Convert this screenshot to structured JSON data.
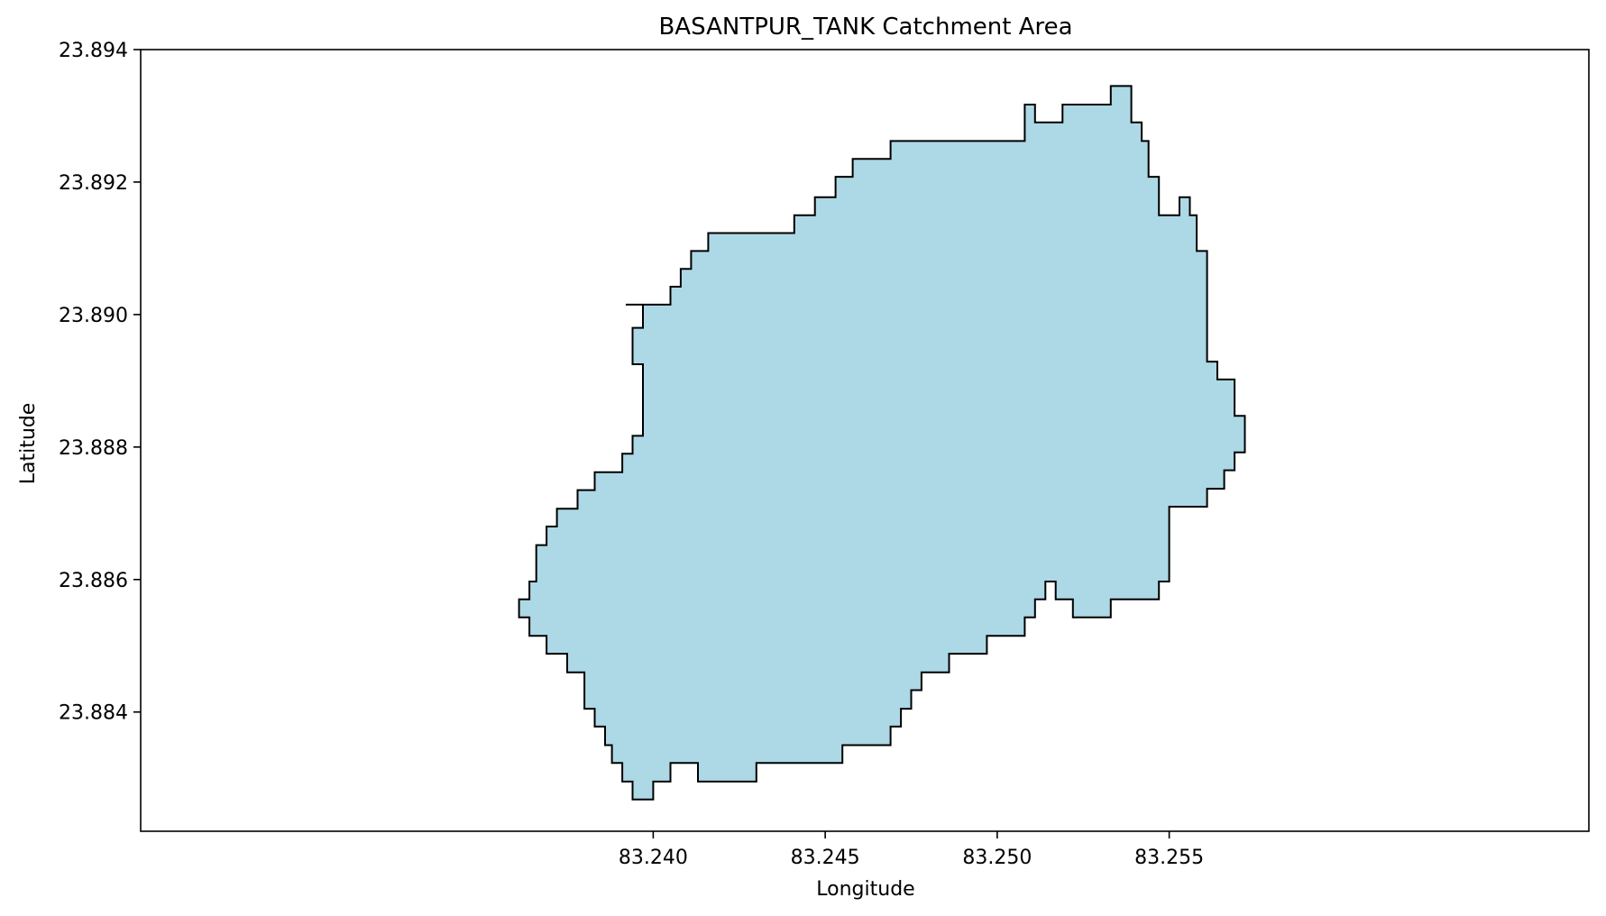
{
  "title": "BASANTPUR_TANK Catchment Area",
  "xlabel": "Longitude",
  "ylabel": "Latitude",
  "chart_data": {
    "type": "area",
    "title": "BASANTPUR_TANK Catchment Area",
    "xlabel": "Longitude",
    "ylabel": "Latitude",
    "xlim": [
      83.2251,
      83.2672
    ],
    "ylim": [
      23.8822,
      23.894
    ],
    "xticks": [
      83.24,
      83.245,
      83.25,
      83.255
    ],
    "xtick_labels": [
      "83.240",
      "83.245",
      "83.250",
      "83.255"
    ],
    "yticks": [
      23.884,
      23.886,
      23.888,
      23.89,
      23.892,
      23.894
    ],
    "ytick_labels": [
      "23.884",
      "23.886",
      "23.888",
      "23.890",
      "23.892",
      "23.894"
    ],
    "grid": false,
    "fill_color": "#add8e6",
    "edge_color": "#000000",
    "polygon": [
      [
        83.2392,
        23.89015
      ],
      [
        83.2405,
        23.89015
      ],
      [
        83.2405,
        23.89042
      ],
      [
        83.2408,
        23.89042
      ],
      [
        83.2408,
        23.89069
      ],
      [
        83.2411,
        23.89069
      ],
      [
        83.2411,
        23.89096
      ],
      [
        83.2416,
        23.89096
      ],
      [
        83.2416,
        23.89123
      ],
      [
        83.2441,
        23.89123
      ],
      [
        83.2441,
        23.8915
      ],
      [
        83.2447,
        23.8915
      ],
      [
        83.2447,
        23.89177
      ],
      [
        83.2453,
        23.89177
      ],
      [
        83.2453,
        23.89208
      ],
      [
        83.2458,
        23.89208
      ],
      [
        83.2458,
        23.89235
      ],
      [
        83.2469,
        23.89235
      ],
      [
        83.2469,
        23.89262
      ],
      [
        83.2508,
        23.89262
      ],
      [
        83.2508,
        23.89317
      ],
      [
        83.2511,
        23.89317
      ],
      [
        83.2511,
        23.8929
      ],
      [
        83.2519,
        23.8929
      ],
      [
        83.2519,
        23.89317
      ],
      [
        83.2533,
        23.89317
      ],
      [
        83.2533,
        23.89345
      ],
      [
        83.2539,
        23.89345
      ],
      [
        83.2539,
        23.8929
      ],
      [
        83.2542,
        23.8929
      ],
      [
        83.2542,
        23.89262
      ],
      [
        83.2544,
        23.89262
      ],
      [
        83.2544,
        23.89208
      ],
      [
        83.2547,
        23.89208
      ],
      [
        83.2547,
        23.8915
      ],
      [
        83.2553,
        23.8915
      ],
      [
        83.2553,
        23.89177
      ],
      [
        83.2556,
        23.89177
      ],
      [
        83.2556,
        23.8915
      ],
      [
        83.2558,
        23.8915
      ],
      [
        83.2558,
        23.89096
      ],
      [
        83.2561,
        23.89096
      ],
      [
        83.2561,
        23.88929
      ],
      [
        83.2564,
        23.88929
      ],
      [
        83.2564,
        23.88902
      ],
      [
        83.2569,
        23.88902
      ],
      [
        83.2569,
        23.88847
      ],
      [
        83.2572,
        23.88847
      ],
      [
        83.2572,
        23.88792
      ],
      [
        83.2569,
        23.88792
      ],
      [
        83.2569,
        23.88765
      ],
      [
        83.2566,
        23.88765
      ],
      [
        83.2566,
        23.88737
      ],
      [
        83.2561,
        23.88737
      ],
      [
        83.2561,
        23.8871
      ],
      [
        83.255,
        23.8871
      ],
      [
        83.255,
        23.88597
      ],
      [
        83.2547,
        23.88597
      ],
      [
        83.2547,
        23.8857
      ],
      [
        83.2533,
        23.8857
      ],
      [
        83.2533,
        23.88543
      ],
      [
        83.2522,
        23.88543
      ],
      [
        83.2522,
        23.8857
      ],
      [
        83.2517,
        23.8857
      ],
      [
        83.2517,
        23.88597
      ],
      [
        83.2514,
        23.88597
      ],
      [
        83.2514,
        23.8857
      ],
      [
        83.2511,
        23.8857
      ],
      [
        83.2511,
        23.88543
      ],
      [
        83.2508,
        23.88543
      ],
      [
        83.2508,
        23.88515
      ],
      [
        83.2497,
        23.88515
      ],
      [
        83.2497,
        23.88488
      ],
      [
        83.2486,
        23.88488
      ],
      [
        83.2486,
        23.8846
      ],
      [
        83.2478,
        23.8846
      ],
      [
        83.2478,
        23.88433
      ],
      [
        83.2475,
        23.88433
      ],
      [
        83.2475,
        23.88405
      ],
      [
        83.2472,
        23.88405
      ],
      [
        83.2472,
        23.88378
      ],
      [
        83.2469,
        23.88378
      ],
      [
        83.2469,
        23.8835
      ],
      [
        83.2455,
        23.8835
      ],
      [
        83.2455,
        23.88323
      ],
      [
        83.243,
        23.88323
      ],
      [
        83.243,
        23.88295
      ],
      [
        83.2413,
        23.88295
      ],
      [
        83.2413,
        23.88323
      ],
      [
        83.2405,
        23.88323
      ],
      [
        83.2405,
        23.88295
      ],
      [
        83.24,
        23.88295
      ],
      [
        83.24,
        23.88268
      ],
      [
        83.2394,
        23.88268
      ],
      [
        83.2394,
        23.88295
      ],
      [
        83.2391,
        23.88295
      ],
      [
        83.2391,
        23.88323
      ],
      [
        83.2388,
        23.88323
      ],
      [
        83.2388,
        23.8835
      ],
      [
        83.2386,
        23.8835
      ],
      [
        83.2386,
        23.88378
      ],
      [
        83.2383,
        23.88378
      ],
      [
        83.2383,
        23.88405
      ],
      [
        83.238,
        23.88405
      ],
      [
        83.238,
        23.8846
      ],
      [
        83.2375,
        23.8846
      ],
      [
        83.2375,
        23.88488
      ],
      [
        83.2369,
        23.88488
      ],
      [
        83.2369,
        23.88515
      ],
      [
        83.2364,
        23.88515
      ],
      [
        83.2364,
        23.88543
      ],
      [
        83.2361,
        23.88543
      ],
      [
        83.2361,
        23.8857
      ],
      [
        83.2364,
        23.8857
      ],
      [
        83.2364,
        23.88597
      ],
      [
        83.2366,
        23.88597
      ],
      [
        83.2366,
        23.88652
      ],
      [
        83.2369,
        23.88652
      ],
      [
        83.2369,
        23.8868
      ],
      [
        83.2372,
        23.8868
      ],
      [
        83.2372,
        23.88707
      ],
      [
        83.2378,
        23.88707
      ],
      [
        83.2378,
        23.88735
      ],
      [
        83.2383,
        23.88735
      ],
      [
        83.2383,
        23.88762
      ],
      [
        83.2391,
        23.88762
      ],
      [
        83.2391,
        23.8879
      ],
      [
        83.2394,
        23.8879
      ],
      [
        83.2394,
        23.88817
      ],
      [
        83.2397,
        23.88817
      ],
      [
        83.2397,
        23.88925
      ],
      [
        83.2394,
        23.88925
      ],
      [
        83.2394,
        23.8898
      ],
      [
        83.2397,
        23.8898
      ],
      [
        83.2397,
        23.89015
      ]
    ]
  }
}
